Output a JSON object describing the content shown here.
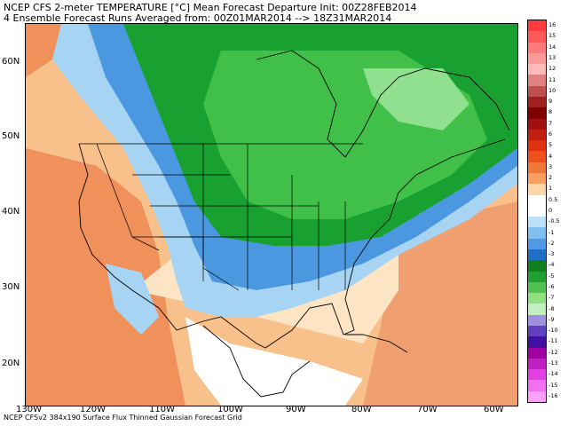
{
  "title_line1": "NCEP CFS 2-meter TEMPERATURE [°C] Mean Forecast Departure Init: 00Z28FEB2014",
  "title_line2": "4 Ensemble Forecast Runs Averaged from: 00Z01MAR2014 --> 18Z31MAR2014",
  "footer": "NCEP CFSv2 384x190 Surface Flux Thinned Gaussian Forecast Grid",
  "lat_labels": [
    "60N",
    "50N",
    "40N",
    "30N",
    "20N"
  ],
  "lon_labels": [
    "130W",
    "120W",
    "110W",
    "100W",
    "90W",
    "80W",
    "70W",
    "60W"
  ],
  "legend": {
    "labels": [
      "16",
      "15",
      "14",
      "13",
      "12",
      "11",
      "10",
      "9",
      "8",
      "7",
      "6",
      "5",
      "4",
      "3",
      "2",
      "1",
      "0.5",
      "0",
      "-0.5",
      "-1",
      "-2",
      "-3",
      "-4",
      "-5",
      "-6",
      "-7",
      "-8",
      "-9",
      "-10",
      "-11",
      "-12",
      "-13",
      "-14",
      "-15",
      "-16"
    ],
    "colors": [
      "#ff3b3b",
      "#ff5a5a",
      "#ff7a7a",
      "#ff9a9a",
      "#ffbaba",
      "#e08080",
      "#c05050",
      "#a02020",
      "#800000",
      "#a01010",
      "#c02010",
      "#e03010",
      "#f05020",
      "#f07838",
      "#f8a060",
      "#fcd8a8",
      "#ffffff",
      "#ffffff",
      "#bce0f8",
      "#80c0f0",
      "#5098e8",
      "#2070c8",
      "#108020",
      "#20a030",
      "#50c050",
      "#90e080",
      "#c0f0c0",
      "#a090e0",
      "#6040c0",
      "#4010a0",
      "#a000a0",
      "#c020c0",
      "#e040e0",
      "#f070f0",
      "#fca0fc"
    ]
  },
  "colors": {
    "warm_orange": "#f0905a",
    "light_orange": "#f8c08a",
    "pale": "#fce4c4",
    "white": "#ffffff",
    "light_blue": "#a8d4f4",
    "blue": "#4c98e0",
    "dark_green": "#18a030",
    "mid_green": "#40c048",
    "light_green": "#90e090"
  }
}
